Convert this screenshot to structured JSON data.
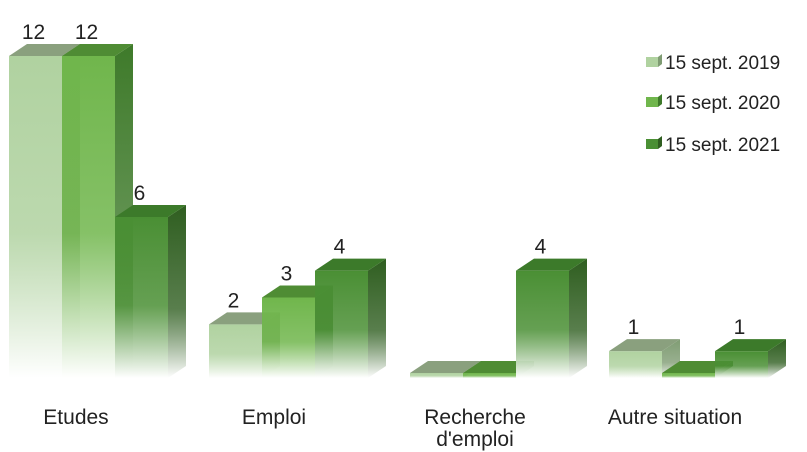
{
  "chart_data": {
    "type": "bar",
    "title": "",
    "xlabel": "",
    "ylabel": "",
    "ylim": [
      0,
      12
    ],
    "grid": false,
    "legend_position": "top-right",
    "categories": [
      "Etudes",
      "Emploi",
      "Recherche d'emploi",
      "Autre situation"
    ],
    "category_lines": [
      [
        "Etudes"
      ],
      [
        "Emploi"
      ],
      [
        "Recherche",
        "d'emploi"
      ],
      [
        "Autre situation"
      ]
    ],
    "series": [
      {
        "name": "15 sept. 2019",
        "values": [
          12,
          2,
          0,
          1
        ],
        "labels": [
          "12",
          "2",
          "",
          "1"
        ]
      },
      {
        "name": "15 sept. 2020",
        "values": [
          12,
          3,
          0,
          0
        ],
        "labels": [
          "12",
          "3",
          "",
          ""
        ]
      },
      {
        "name": "15 sept. 2021",
        "values": [
          6,
          4,
          4,
          1
        ],
        "labels": [
          "6",
          "4",
          "4",
          "1"
        ]
      }
    ]
  },
  "colors": {
    "series": [
      {
        "front_top": "#b0d2a0",
        "side": "#7f9c73",
        "top": "#8aa07e"
      },
      {
        "front_top": "#70b64c",
        "side": "#3e7a2a",
        "top": "#4f8c34"
      },
      {
        "front_top": "#4a8f34",
        "side": "#2f5e20",
        "top": "#3c7a2a"
      }
    ]
  }
}
